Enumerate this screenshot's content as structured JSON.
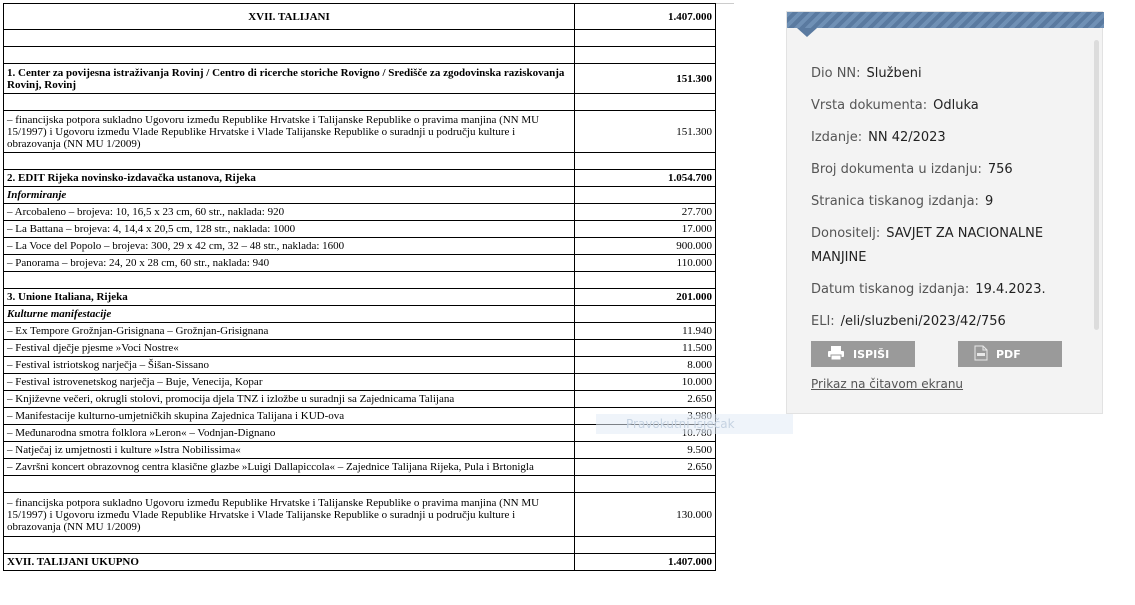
{
  "doc": {
    "rows": [
      {
        "type": "header",
        "text": "XVII. TALIJANI",
        "amount": "1.407.000"
      },
      {
        "type": "blank"
      },
      {
        "type": "blank"
      },
      {
        "type": "section",
        "text": "1. Center za povijesna istraživanja Rovinj / Centro di ricerche storiche Rovigno / Središče za zgodovinska raziskovanja Rovinj, Rovinj",
        "amount": "151.300"
      },
      {
        "type": "blank"
      },
      {
        "type": "item",
        "text": "– financijska potpora sukladno Ugovoru između Republike Hrvatske i Talijanske Republike o pravima manjina (NN MU 15/1997) i Ugovoru između Vlade Republike Hrvatske i Vlade Talijanske Republike o suradnji u području kulture i obrazovanja (NN MU 1/2009)",
        "amount": "151.300"
      },
      {
        "type": "blank"
      },
      {
        "type": "section",
        "text": "2. EDIT Rijeka novinsko-izdavačka ustanova, Rijeka",
        "amount": "1.054.700"
      },
      {
        "type": "sub",
        "text": "Informiranje",
        "amount": ""
      },
      {
        "type": "item",
        "text": "– Arcobaleno – brojeva: 10, 16,5 x 23 cm, 60 str., naklada: 920",
        "amount": "27.700"
      },
      {
        "type": "item",
        "text": "– La Battana – brojeva: 4, 14,4 x 20,5 cm, 128 str., naklada: 1000",
        "amount": "17.000"
      },
      {
        "type": "item",
        "text": "– La Voce del Popolo – brojeva: 300, 29 x 42 cm, 32 – 48 str., naklada: 1600",
        "amount": "900.000"
      },
      {
        "type": "item",
        "text": "– Panorama – brojeva: 24, 20 x 28 cm, 60 str., naklada: 940",
        "amount": "110.000"
      },
      {
        "type": "blank"
      },
      {
        "type": "section",
        "text": "3. Unione Italiana, Rijeka",
        "amount": "201.000"
      },
      {
        "type": "sub",
        "text": "Kulturne manifestacije",
        "amount": ""
      },
      {
        "type": "item",
        "text": "– Ex Tempore Grožnjan-Grisignana – Grožnjan-Grisignana",
        "amount": "11.940"
      },
      {
        "type": "item",
        "text": "– Festival dječje pjesme »Voci Nostre«",
        "amount": "11.500"
      },
      {
        "type": "item",
        "text": "– Festival istriotskog narječja – Šišan-Sissano",
        "amount": "8.000"
      },
      {
        "type": "item",
        "text": "– Festival istrovenetskog narječja – Buje, Venecija, Kopar",
        "amount": "10.000"
      },
      {
        "type": "item",
        "text": "– Književne večeri, okrugli stolovi, promocija djela TNZ i izložbe u suradnji sa Zajednicama Talijana",
        "amount": "2.650"
      },
      {
        "type": "item",
        "text": "– Manifestacije kulturno-umjetničkih skupina Zajednica Talijana i KUD-ova",
        "amount": "3.980"
      },
      {
        "type": "item",
        "text": "– Međunarodna smotra folklora »Leron« – Vodnjan-Dignano",
        "amount": "10.780"
      },
      {
        "type": "item",
        "text": "– Natječaj iz umjetnosti i kulture »Istra Nobilissima«",
        "amount": "9.500"
      },
      {
        "type": "item",
        "text": "– Završni koncert obrazovnog centra klasične glazbe »Luigi Dallapiccola« – Zajednice Talijana Rijeka, Pula i Brtonigla",
        "amount": "2.650"
      },
      {
        "type": "blank"
      },
      {
        "type": "item",
        "text": "– financijska potpora sukladno Ugovoru između Republike Hrvatske i Talijanske Republike o pravima manjina (NN MU 15/1997) i Ugovoru između Vlade Republike Hrvatske i Vlade Talijanske Republike o suradnji u području kulture i obrazovanja (NN MU 1/2009)",
        "amount": "130.000"
      },
      {
        "type": "blank"
      },
      {
        "type": "total",
        "text": "XVII. TALIJANI UKUPNO",
        "amount": "1.407.000"
      }
    ]
  },
  "panel": {
    "fields": [
      {
        "label": "Dio NN:",
        "value": "Službeni"
      },
      {
        "label": "Vrsta dokumenta:",
        "value": "Odluka"
      },
      {
        "label": "Izdanje:",
        "value": "NN 42/2023"
      },
      {
        "label": "Broj dokumenta u izdanju:",
        "value": "756"
      },
      {
        "label": "Stranica tiskanog izdanja:",
        "value": "9"
      },
      {
        "label": "Donositelj:",
        "value": "SAVJET ZA NACIONALNE MANJINE"
      },
      {
        "label": "Datum tiskanog izdanja:",
        "value": "19.4.2023."
      },
      {
        "label": "ELI:",
        "value": "/eli/sluzbeni/2023/42/756"
      }
    ],
    "print_label": "ISPIŠI",
    "pdf_label": "PDF",
    "reader_link": "Prikaz na čitavom ekranu"
  },
  "ghost_text": "Pravokutni isječak"
}
